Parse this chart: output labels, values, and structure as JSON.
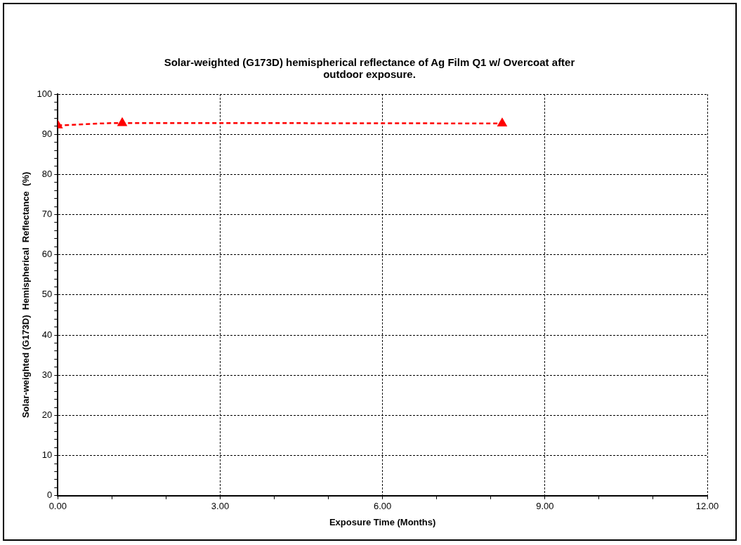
{
  "chart_data": {
    "type": "line",
    "title": "Solar-weighted (G173D) hemispherical reflectance of Ag Film Q1 w/ Overcoat after outdoor exposure.",
    "xlabel": "Exposure Time (Months)",
    "ylabel": "Solar-weighted (G173D)  Hemispherical  Reflectance  (%)",
    "x": [
      0,
      1.19,
      8.21
    ],
    "series": [
      {
        "color": "#ff0000",
        "values": [
          92.2,
          92.8,
          92.7
        ]
      }
    ],
    "xlim": [
      0,
      12
    ],
    "ylim": [
      0,
      100
    ],
    "xticks": [
      {
        "value": 0,
        "label": "0.00"
      },
      {
        "value": 1,
        "label": null
      },
      {
        "value": 2,
        "label": null
      },
      {
        "value": 3,
        "label": "3.00"
      },
      {
        "value": 4,
        "label": null
      },
      {
        "value": 5,
        "label": null
      },
      {
        "value": 6,
        "label": "6.00"
      },
      {
        "value": 7,
        "label": null
      },
      {
        "value": 8,
        "label": null
      },
      {
        "value": 9,
        "label": "9.00"
      },
      {
        "value": 10,
        "label": null
      },
      {
        "value": 11,
        "label": null
      },
      {
        "value": 12,
        "label": "12.00"
      }
    ],
    "yticks": [
      0,
      {
        "value": 2,
        "label": null
      },
      {
        "value": 4,
        "label": null
      },
      {
        "value": 6,
        "label": null
      },
      {
        "value": 8,
        "label": null
      },
      10,
      {
        "value": 12,
        "label": null
      },
      {
        "value": 14,
        "label": null
      },
      {
        "value": 16,
        "label": null
      },
      {
        "value": 18,
        "label": null
      },
      20,
      {
        "value": 22,
        "label": null
      },
      {
        "value": 24,
        "label": null
      },
      {
        "value": 26,
        "label": null
      },
      {
        "value": 28,
        "label": null
      },
      30,
      {
        "value": 32,
        "label": null
      },
      {
        "value": 34,
        "label": null
      },
      {
        "value": 36,
        "label": null
      },
      {
        "value": 38,
        "label": null
      },
      40,
      {
        "value": 42,
        "label": null
      },
      {
        "value": 44,
        "label": null
      },
      {
        "value": 46,
        "label": null
      },
      {
        "value": 48,
        "label": null
      },
      50,
      {
        "value": 52,
        "label": null
      },
      {
        "value": 54,
        "label": null
      },
      {
        "value": 56,
        "label": null
      },
      {
        "value": 58,
        "label": null
      },
      60,
      {
        "value": 62,
        "label": null
      },
      {
        "value": 64,
        "label": null
      },
      {
        "value": 66,
        "label": null
      },
      {
        "value": 68,
        "label": null
      },
      70,
      {
        "value": 72,
        "label": null
      },
      {
        "value": 74,
        "label": null
      },
      {
        "value": 76,
        "label": null
      },
      {
        "value": 78,
        "label": null
      },
      80,
      {
        "value": 82,
        "label": null
      },
      {
        "value": 84,
        "label": null
      },
      {
        "value": 86,
        "label": null
      },
      {
        "value": 88,
        "label": null
      },
      90,
      {
        "value": 92,
        "label": null
      },
      {
        "value": 94,
        "label": null
      },
      {
        "value": 96,
        "label": null
      },
      {
        "value": 98,
        "label": null
      },
      100
    ],
    "grid": true,
    "legend": false,
    "marker": "triangle",
    "line_style": "dashed"
  }
}
